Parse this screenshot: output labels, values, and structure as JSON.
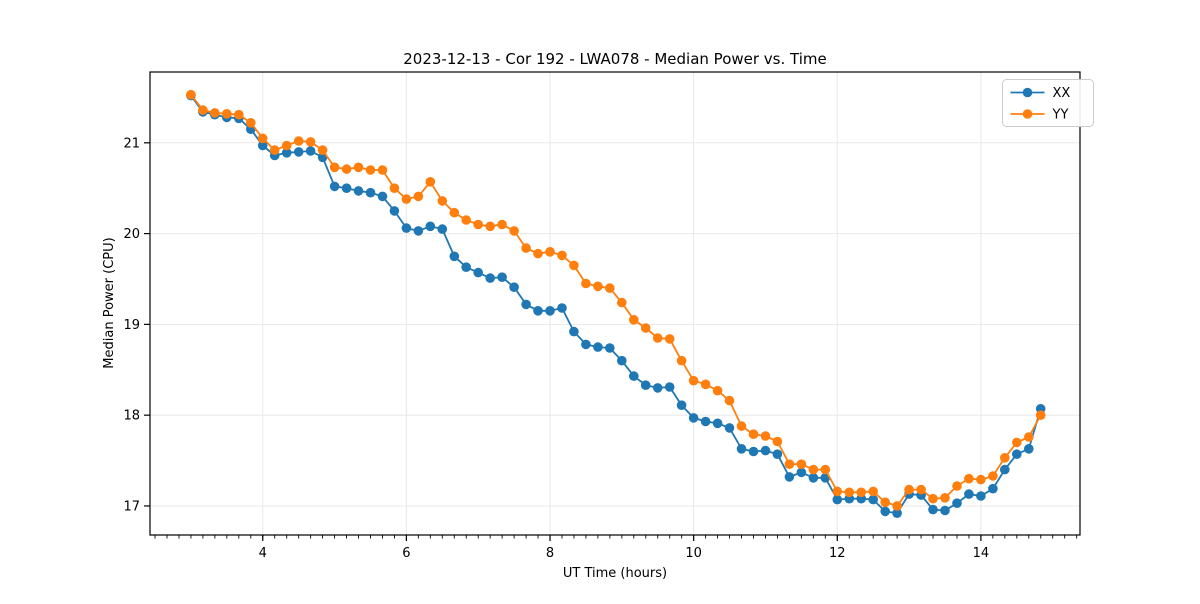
{
  "figure": {
    "title": "2023-12-13 - Cor 192 - LWA078 - Median Power vs. Time",
    "xlabel": "UT Time (hours)",
    "ylabel": "Median Power (CPU)"
  },
  "legend": {
    "position": "upper right",
    "items": [
      {
        "label": "XX",
        "color": "#1f77b4"
      },
      {
        "label": "YY",
        "color": "#ff7f0e"
      }
    ]
  },
  "colors": {
    "xx_series": "#1f77b4",
    "yy_series": "#ff7f0e",
    "grid": "#e8e8e8",
    "spine": "#000000",
    "background": "#ffffff",
    "legend_border": "#cccccc"
  },
  "chart_data": {
    "type": "line",
    "title": "2023-12-13 - Cor 192 - LWA078 - Median Power vs. Time",
    "xlabel": "UT Time (hours)",
    "ylabel": "Median Power (CPU)",
    "xlim": [
      2.43,
      15.38
    ],
    "ylim": [
      16.68,
      21.78
    ],
    "xticks": [
      4,
      6,
      8,
      10,
      12,
      14
    ],
    "yticks": [
      17,
      18,
      19,
      20,
      21
    ],
    "x_minor_step": 0.16667,
    "grid": true,
    "legend_position": "upper right",
    "marker": "o",
    "x": [
      3.0,
      3.167,
      3.333,
      3.5,
      3.667,
      3.833,
      4.0,
      4.167,
      4.333,
      4.5,
      4.667,
      4.833,
      5.0,
      5.167,
      5.333,
      5.5,
      5.667,
      5.833,
      6.0,
      6.167,
      6.333,
      6.5,
      6.667,
      6.833,
      7.0,
      7.167,
      7.333,
      7.5,
      7.667,
      7.833,
      8.0,
      8.167,
      8.333,
      8.5,
      8.667,
      8.833,
      9.0,
      9.167,
      9.333,
      9.5,
      9.667,
      9.833,
      10.0,
      10.167,
      10.333,
      10.5,
      10.667,
      10.833,
      11.0,
      11.167,
      11.333,
      11.5,
      11.667,
      11.833,
      12.0,
      12.167,
      12.333,
      12.5,
      12.667,
      12.833,
      13.0,
      13.167,
      13.333,
      13.5,
      13.667,
      13.833,
      14.0,
      14.167,
      14.333,
      14.5,
      14.667,
      14.833
    ],
    "series": [
      {
        "name": "XX",
        "color": "#1f77b4",
        "values": [
          21.52,
          21.34,
          21.31,
          21.28,
          21.27,
          21.15,
          20.97,
          20.86,
          20.89,
          20.9,
          20.91,
          20.84,
          20.52,
          20.5,
          20.47,
          20.45,
          20.41,
          20.25,
          20.06,
          20.03,
          20.08,
          20.05,
          19.75,
          19.63,
          19.57,
          19.51,
          19.52,
          19.41,
          19.22,
          19.15,
          19.15,
          19.18,
          18.92,
          18.78,
          18.75,
          18.74,
          18.6,
          18.43,
          18.33,
          18.3,
          18.31,
          18.11,
          17.97,
          17.93,
          17.91,
          17.86,
          17.63,
          17.6,
          17.61,
          17.57,
          17.32,
          17.37,
          17.31,
          17.31,
          17.07,
          17.08,
          17.08,
          17.07,
          16.94,
          16.92,
          17.13,
          17.12,
          16.96,
          16.95,
          17.03,
          17.13,
          17.11,
          17.19,
          17.4,
          17.57,
          17.63,
          18.07
        ]
      },
      {
        "name": "YY",
        "color": "#ff7f0e",
        "values": [
          21.53,
          21.36,
          21.33,
          21.32,
          21.31,
          21.22,
          21.05,
          20.92,
          20.97,
          21.02,
          21.01,
          20.92,
          20.73,
          20.71,
          20.73,
          20.7,
          20.7,
          20.5,
          20.38,
          20.41,
          20.57,
          20.36,
          20.23,
          20.15,
          20.1,
          20.08,
          20.1,
          20.03,
          19.84,
          19.78,
          19.8,
          19.76,
          19.65,
          19.45,
          19.42,
          19.4,
          19.24,
          19.05,
          18.96,
          18.85,
          18.84,
          18.6,
          18.38,
          18.34,
          18.27,
          18.16,
          17.88,
          17.79,
          17.77,
          17.71,
          17.46,
          17.46,
          17.4,
          17.4,
          17.16,
          17.15,
          17.15,
          17.16,
          17.04,
          17.0,
          17.18,
          17.18,
          17.08,
          17.09,
          17.22,
          17.3,
          17.29,
          17.33,
          17.53,
          17.7,
          17.76,
          18.0
        ]
      }
    ]
  }
}
